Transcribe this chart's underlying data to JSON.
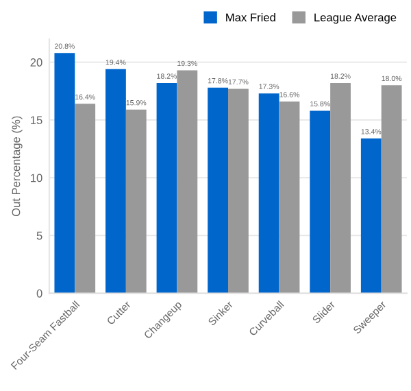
{
  "chart_data": {
    "type": "bar",
    "ylabel": "Out Percentage (%)",
    "categories": [
      "Four-Seam Fastball",
      "Cutter",
      "Changeup",
      "Sinker",
      "Curveball",
      "Slider",
      "Sweeper"
    ],
    "series": [
      {
        "name": "Max Fried",
        "color": "#0066cc",
        "values": [
          20.8,
          19.4,
          18.2,
          17.8,
          17.3,
          15.8,
          13.4
        ],
        "value_labels": [
          "20.8%",
          "19.4%",
          "18.2%",
          "17.8%",
          "17.3%",
          "15.8%",
          "13.4%"
        ]
      },
      {
        "name": "League Average",
        "color": "#999999",
        "values": [
          16.4,
          15.9,
          19.3,
          17.7,
          16.6,
          18.2,
          18.0
        ],
        "value_labels": [
          "16.4%",
          "15.9%",
          "19.3%",
          "17.7%",
          "16.6%",
          "18.2%",
          "18.0%"
        ]
      }
    ],
    "ylim": [
      0,
      22
    ],
    "yticks": [
      0,
      5,
      10,
      15,
      20
    ],
    "grid": "y",
    "legend": "top right"
  }
}
